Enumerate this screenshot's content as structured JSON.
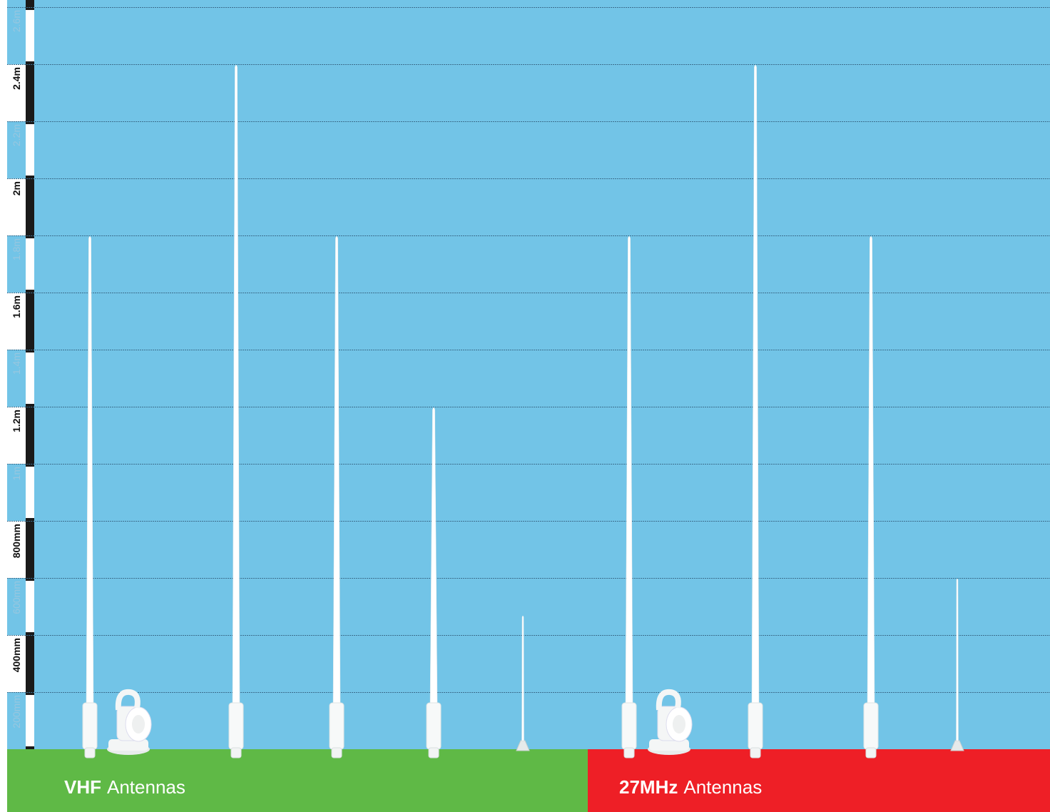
{
  "chart_data": {
    "type": "antenna",
    "categories": [
      null,
      null,
      null,
      null,
      null,
      null,
      null,
      null,
      null
    ],
    "values": [
      1800,
      2400,
      1800,
      1200,
      470,
      1800,
      2400,
      1800,
      600
    ],
    "color": "#ffffff",
    "background": "#72c4e7",
    "ylim": [
      0,
      2600
    ],
    "yticks": [
      {
        "value": 200,
        "label": "200mm"
      },
      {
        "value": 400,
        "label": "400mm"
      },
      {
        "value": 600,
        "label": "600mm"
      },
      {
        "value": 800,
        "label": "800mm"
      },
      {
        "value": 1000,
        "label": "1m"
      },
      {
        "value": 1200,
        "label": "1.2m"
      },
      {
        "value": 1400,
        "label": "1.4m"
      },
      {
        "value": 1600,
        "label": "1.6m"
      },
      {
        "value": 1800,
        "label": "1.8m"
      },
      {
        "value": 2000,
        "label": "2m"
      },
      {
        "value": 2200,
        "label": "2.2m"
      },
      {
        "value": 2400,
        "label": "2.4m"
      },
      {
        "value": 2600,
        "label": "2.6m"
      }
    ],
    "grid": true,
    "groups": [
      {
        "label": "VHF",
        "suffix": "Antennas",
        "color": "#5fb946"
      },
      {
        "label": "27MHz",
        "suffix": "Antennas",
        "color": "#ee1f26"
      }
    ]
  }
}
